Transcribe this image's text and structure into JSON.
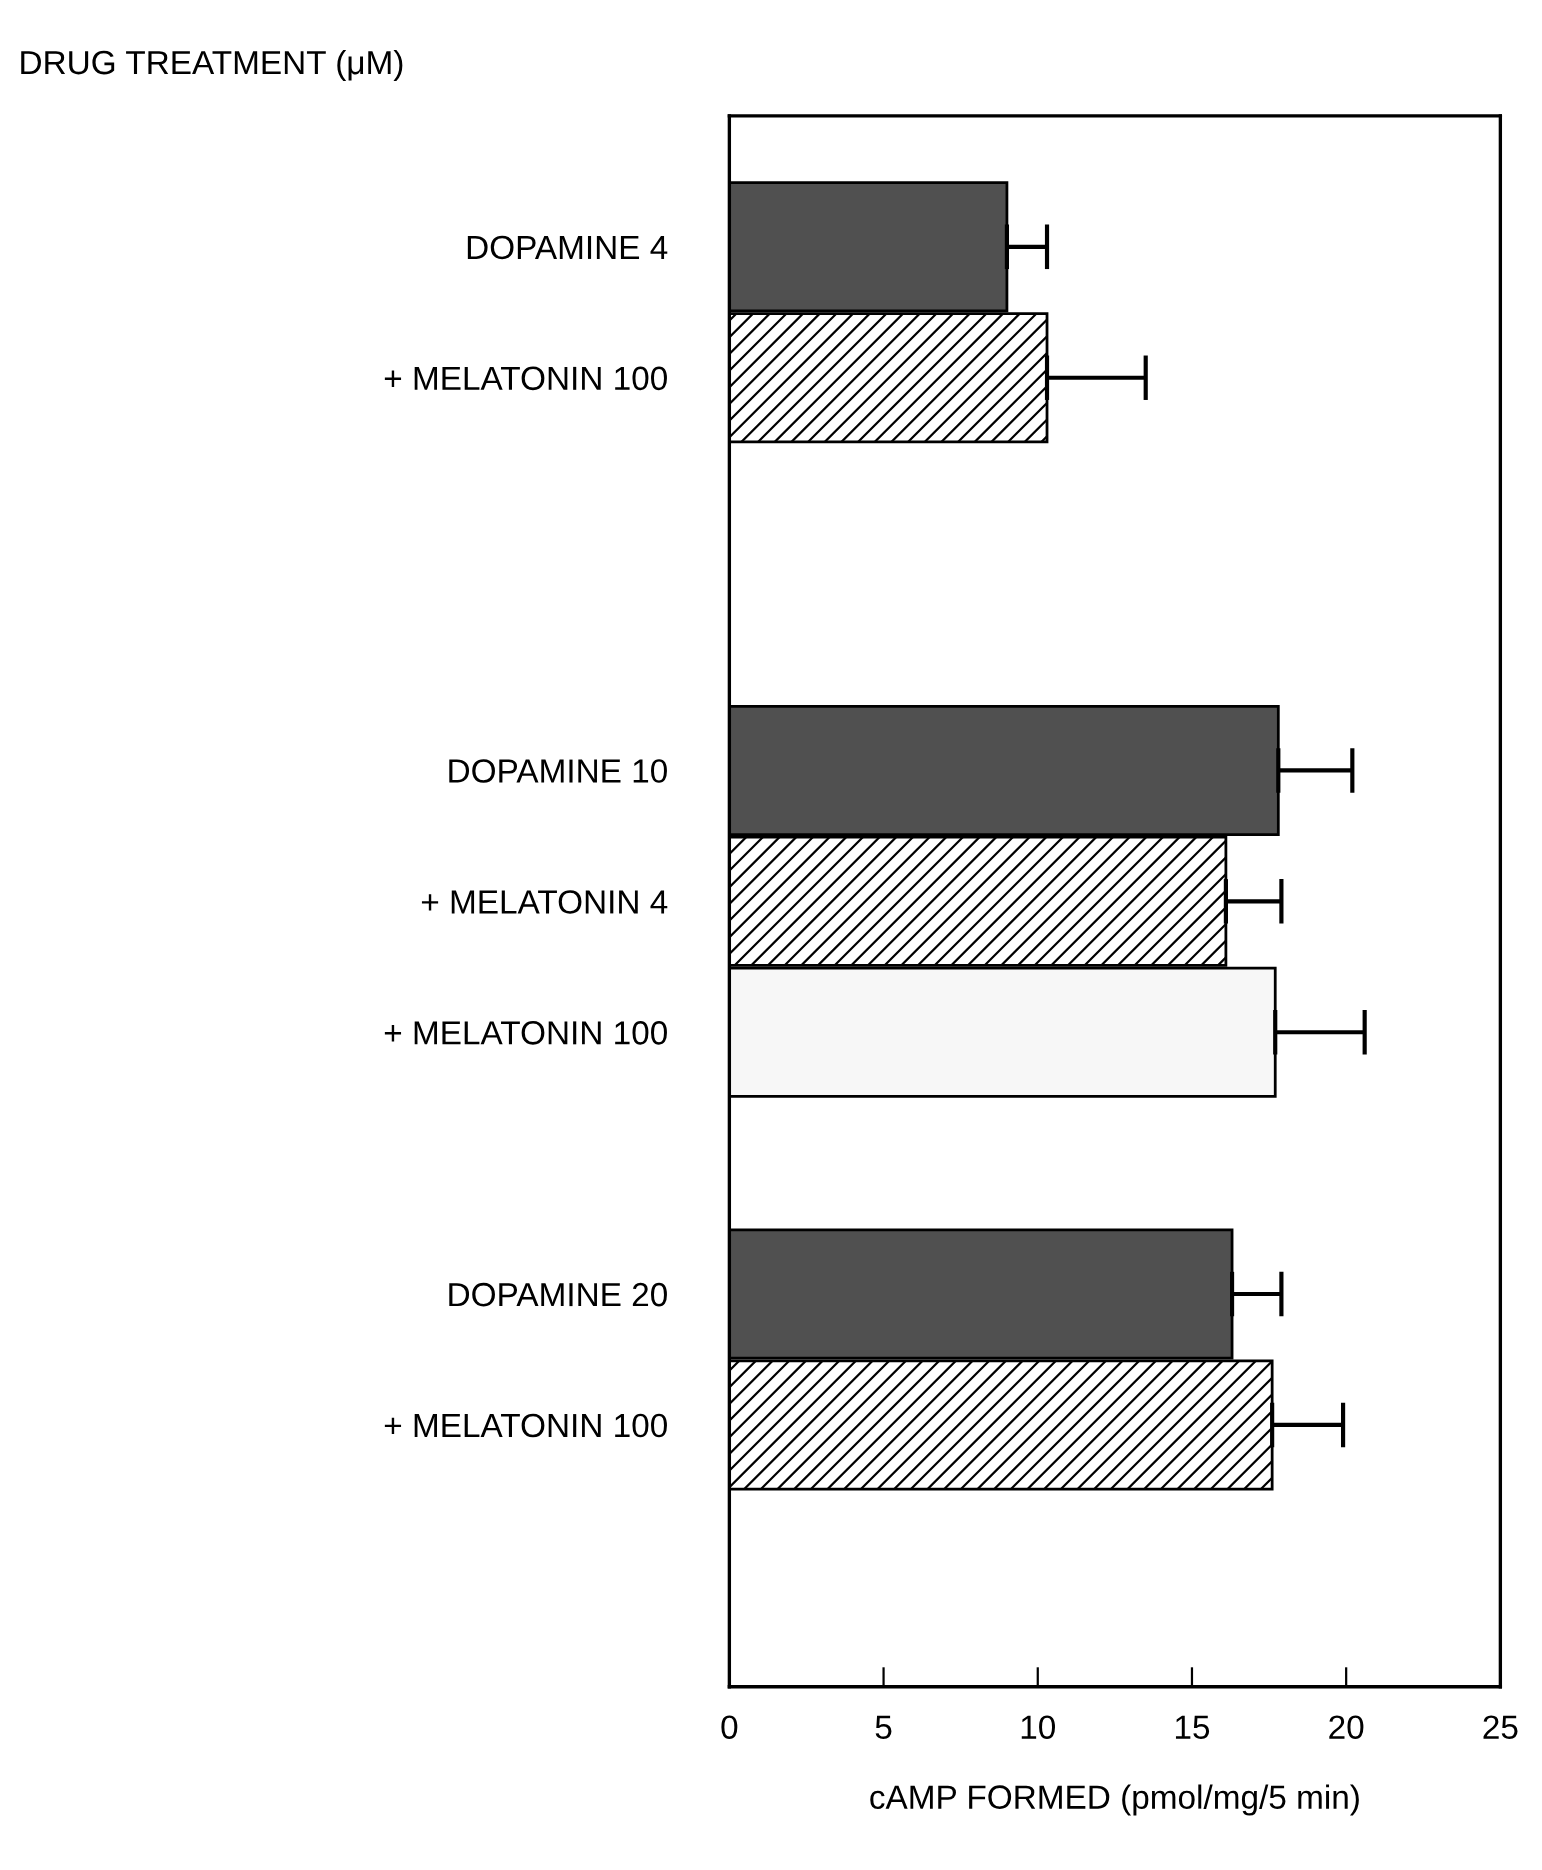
{
  "chart_data": {
    "type": "bar",
    "orientation": "horizontal",
    "title": "DRUG TREATMENT (μM)",
    "xlabel": "cAMP FORMED (pmol/mg/5 min)",
    "categories": [
      "DOPAMINE 4",
      "+ MELATONIN 100",
      null,
      null,
      "DOPAMINE 10",
      "+ MELATONIN 4",
      "+ MELATONIN 100",
      null,
      "DOPAMINE 20",
      "+ MELATONIN 100"
    ],
    "values": [
      9.0,
      10.3,
      null,
      null,
      17.8,
      16.1,
      17.7,
      null,
      16.3,
      17.6
    ],
    "errors": [
      [
        9.0,
        10.3
      ],
      [
        10.3,
        13.5
      ],
      null,
      null,
      [
        17.8,
        20.2
      ],
      [
        16.1,
        17.9
      ],
      [
        17.7,
        20.6
      ],
      null,
      [
        16.3,
        17.9
      ],
      [
        17.6,
        19.9
      ]
    ],
    "colors": [
      "#505050",
      "#000000",
      null,
      null,
      "#505050",
      "#000000",
      "#f7f7f7",
      null,
      "#505050",
      "#000000"
    ],
    "xlim": [
      0,
      25
    ],
    "xticks": [
      0,
      5,
      10,
      15,
      20,
      25
    ],
    "grid": false,
    "legend": false
  }
}
